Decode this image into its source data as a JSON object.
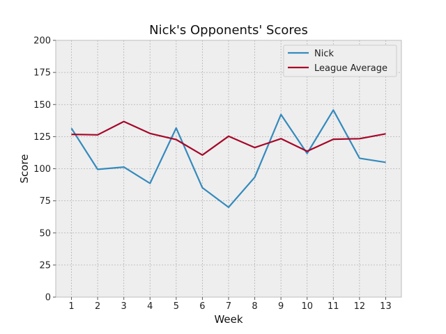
{
  "chart_data": {
    "type": "line",
    "title": "Nick's Opponents' Scores",
    "xlabel": "Week",
    "ylabel": "Score",
    "x": [
      1,
      2,
      3,
      4,
      5,
      6,
      7,
      8,
      9,
      10,
      11,
      12,
      13
    ],
    "xlim": [
      0.4,
      13.6
    ],
    "ylim": [
      0,
      200
    ],
    "yticks": [
      0,
      25,
      50,
      75,
      100,
      125,
      150,
      175,
      200
    ],
    "grid": true,
    "legend_position": "top-right",
    "series": [
      {
        "name": "Nick",
        "color": "#348abd",
        "values": [
          131.5,
          99.5,
          101.3,
          88.6,
          131.7,
          85.2,
          70.0,
          93.4,
          142.2,
          111.9,
          145.7,
          108.2,
          105.0
        ]
      },
      {
        "name": "League Average",
        "color": "#a60628",
        "values": [
          126.8,
          126.4,
          136.8,
          127.5,
          122.7,
          110.7,
          125.3,
          116.5,
          123.4,
          113.6,
          123.0,
          123.4,
          127.2
        ]
      }
    ]
  },
  "colors": {
    "plot_background": "#eeeeee",
    "grid": "#b2b2b2",
    "frame": "#bcbcbc"
  }
}
